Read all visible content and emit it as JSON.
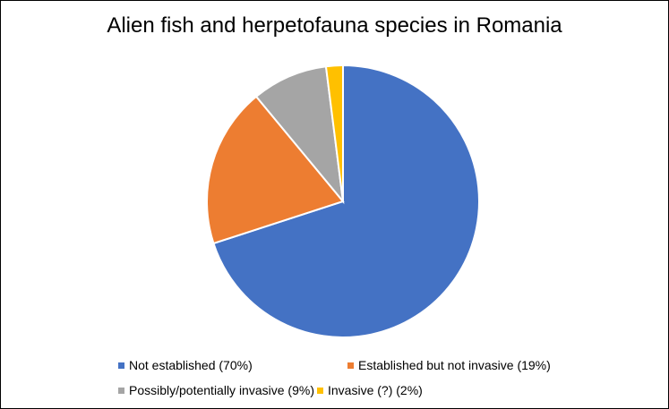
{
  "chart_data": {
    "type": "pie",
    "title": "Alien fish and herpetofauna species in Romania",
    "slices": [
      {
        "label": "Not established (70%)",
        "value": 70,
        "color": "#4472c4"
      },
      {
        "label": "Established but not invasive (19%)",
        "value": 19,
        "color": "#ed7d31"
      },
      {
        "label": "Possibly/potentially invasive (9%)",
        "value": 9,
        "color": "#a5a5a5"
      },
      {
        "label": "Invasive (?) (2%)",
        "value": 2,
        "color": "#ffc000"
      }
    ],
    "legend_position": "bottom"
  }
}
